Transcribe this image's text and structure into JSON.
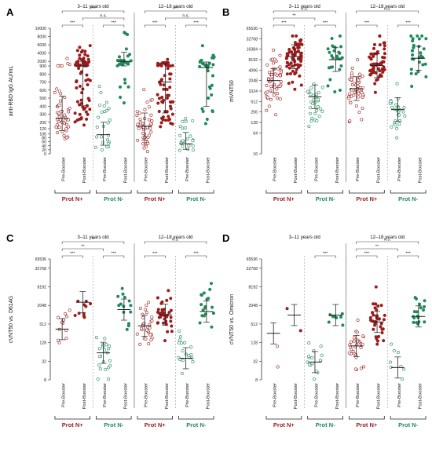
{
  "colors": {
    "pos": "#9b1c1c",
    "neg": "#1f8a5b",
    "axis": "#333333",
    "sep": "#9a9a9a",
    "bracket": "#444444"
  },
  "chart_data": [
    {
      "id": "A",
      "type": "scatter",
      "panel_letter": "A",
      "ylabel": "anti-RBD IgG AU/mL",
      "yscale": "broken-linear",
      "ticks": [
        "0",
        "20",
        "40",
        "60",
        "80",
        "100",
        "120",
        "200",
        "300",
        "400",
        "500",
        "600",
        "700",
        "800",
        "900",
        "2000",
        "4000",
        "6000",
        "8000",
        "10000"
      ],
      "ylim": [
        0,
        10000
      ],
      "groups": [
        {
          "label": "3–11 years old",
          "cols": [
            0,
            3
          ]
        },
        {
          "label": "12–18 years old",
          "cols": [
            4,
            7
          ]
        }
      ],
      "categories": [
        "Pre-Booster",
        "Post-Booster",
        "Pre-Booster",
        "Post-Booster",
        "Pre-Booster",
        "Post-Booster",
        "Pre-Booster",
        "Post-Booster"
      ],
      "bottom_labels": [
        "Prot N+",
        "Prot N-",
        "Prot N+",
        "Prot N-"
      ],
      "series": [
        {
          "group": "Prot N+",
          "age": "3–11",
          "booster": "Pre",
          "median": 250,
          "n": 50
        },
        {
          "group": "Prot N+",
          "age": "3–11",
          "booster": "Post",
          "median": 900,
          "n": 75
        },
        {
          "group": "Prot N-",
          "age": "3–11",
          "booster": "Pre",
          "median": 95,
          "n": 25
        },
        {
          "group": "Prot N-",
          "age": "3–11",
          "booster": "Post",
          "median": 2000,
          "n": 28
        },
        {
          "group": "Prot N+",
          "age": "12–18",
          "booster": "Pre",
          "median": 150,
          "n": 50
        },
        {
          "group": "Prot N+",
          "age": "12–18",
          "booster": "Post",
          "median": 700,
          "n": 60
        },
        {
          "group": "Prot N-",
          "age": "12–18",
          "booster": "Pre",
          "median": 50,
          "n": 22
        },
        {
          "group": "Prot N-",
          "age": "12–18",
          "booster": "Post",
          "median": 880,
          "n": 30
        }
      ],
      "significance": [
        {
          "from": 0,
          "to": 3,
          "label": "***"
        },
        {
          "from": 1,
          "to": 3,
          "label": "n.s."
        },
        {
          "from": 0,
          "to": 1,
          "label": "***"
        },
        {
          "from": 2,
          "to": 3,
          "label": "***"
        },
        {
          "from": 4,
          "to": 7,
          "label": "***"
        },
        {
          "from": 5,
          "to": 7,
          "label": "n.s."
        },
        {
          "from": 4,
          "to": 5,
          "label": "***"
        },
        {
          "from": 6,
          "to": 7,
          "label": "***"
        }
      ]
    },
    {
      "id": "B",
      "type": "scatter",
      "panel_letter": "B",
      "ylabel": "mVNT50",
      "yscale": "log2",
      "ticks": [
        "16",
        "64",
        "128",
        "256",
        "512",
        "1024",
        "2048",
        "4096",
        "8192",
        "16384",
        "32768",
        "65536"
      ],
      "ylim": [
        16,
        65536
      ],
      "groups": [
        {
          "label": "3–11 years old",
          "cols": [
            0,
            3
          ]
        },
        {
          "label": "12–18 years old",
          "cols": [
            4,
            7
          ]
        }
      ],
      "categories": [
        "Pre-Booster",
        "Post-Booster",
        "Pre-Booster",
        "Post-Booster",
        "Pre-Booster",
        "Post-Booster",
        "Pre-Booster",
        "Post-Booster"
      ],
      "bottom_labels": [
        "Prot N+",
        "Prot N-",
        "Prot N+",
        "Prot N-"
      ],
      "series": [
        {
          "group": "Prot N+",
          "age": "3–11",
          "booster": "Pre",
          "median": 2048,
          "n": 55
        },
        {
          "group": "Prot N+",
          "age": "3–11",
          "booster": "Post",
          "median": 10000,
          "n": 70
        },
        {
          "group": "Prot N-",
          "age": "3–11",
          "booster": "Pre",
          "median": 700,
          "n": 30
        },
        {
          "group": "Prot N-",
          "age": "3–11",
          "booster": "Post",
          "median": 8192,
          "n": 25
        },
        {
          "group": "Prot N+",
          "age": "12–18",
          "booster": "Pre",
          "median": 1200,
          "n": 50
        },
        {
          "group": "Prot N+",
          "age": "12–18",
          "booster": "Post",
          "median": 5500,
          "n": 60
        },
        {
          "group": "Prot N-",
          "age": "12–18",
          "booster": "Pre",
          "median": 300,
          "n": 28
        },
        {
          "group": "Prot N-",
          "age": "12–18",
          "booster": "Post",
          "median": 9000,
          "n": 30
        }
      ],
      "significance": [
        {
          "from": 0,
          "to": 3,
          "label": "n.s."
        },
        {
          "from": 0,
          "to": 2,
          "label": "**"
        },
        {
          "from": 0,
          "to": 1,
          "label": "***"
        },
        {
          "from": 2,
          "to": 3,
          "label": "***"
        },
        {
          "from": 4,
          "to": 7,
          "label": "n.s."
        },
        {
          "from": 4,
          "to": 5,
          "label": "***"
        },
        {
          "from": 6,
          "to": 7,
          "label": "***"
        }
      ]
    },
    {
      "id": "C",
      "type": "scatter",
      "panel_letter": "C",
      "ylabel": "cVNT50 vs. D614G",
      "yscale": "log2",
      "ticks": [
        "8",
        "32",
        "128",
        "512",
        "2048",
        "8192",
        "32768",
        "65536"
      ],
      "ylim": [
        8,
        65536
      ],
      "groups": [
        {
          "label": "3–11 years old",
          "cols": [
            0,
            3
          ]
        },
        {
          "label": "12–18 years old",
          "cols": [
            4,
            7
          ]
        }
      ],
      "categories": [
        "Pre-Booster",
        "Post-Booster",
        "Pre-Booster",
        "Post-Booster",
        "Pre-Booster",
        "Post-Booster",
        "Pre-Booster",
        "Post-Booster"
      ],
      "bottom_labels": [
        "Prot N+",
        "Prot N-",
        "Prot N+",
        "Prot N-"
      ],
      "series": [
        {
          "group": "Prot N+",
          "age": "3–11",
          "booster": "Pre",
          "median": 350,
          "n": 12
        },
        {
          "group": "Prot N+",
          "age": "3–11",
          "booster": "Post",
          "median": 2600,
          "n": 10
        },
        {
          "group": "Prot N-",
          "age": "3–11",
          "booster": "Pre",
          "median": 60,
          "n": 22
        },
        {
          "group": "Prot N-",
          "age": "3–11",
          "booster": "Post",
          "median": 1500,
          "n": 14
        },
        {
          "group": "Prot N+",
          "age": "12–18",
          "booster": "Pre",
          "median": 450,
          "n": 30
        },
        {
          "group": "Prot N+",
          "age": "12–18",
          "booster": "Post",
          "median": 1024,
          "n": 35
        },
        {
          "group": "Prot N-",
          "age": "12–18",
          "booster": "Pre",
          "median": 40,
          "n": 18
        },
        {
          "group": "Prot N-",
          "age": "12–18",
          "booster": "Post",
          "median": 1300,
          "n": 18
        }
      ],
      "significance": [
        {
          "from": 0,
          "to": 3,
          "label": "**"
        },
        {
          "from": 0,
          "to": 2,
          "label": "**"
        },
        {
          "from": 0,
          "to": 1,
          "label": "***"
        },
        {
          "from": 2,
          "to": 3,
          "label": "***"
        },
        {
          "from": 4,
          "to": 7,
          "label": "n.s."
        },
        {
          "from": 4,
          "to": 5,
          "label": "***"
        },
        {
          "from": 6,
          "to": 7,
          "label": "***"
        }
      ]
    },
    {
      "id": "D",
      "type": "scatter",
      "panel_letter": "D",
      "ylabel": "cVNT50 vs. Omicron",
      "yscale": "log2",
      "ticks": [
        "8",
        "32",
        "128",
        "512",
        "2048",
        "8192",
        "32768",
        "65536"
      ],
      "ylim": [
        8,
        65536
      ],
      "groups": [
        {
          "label": "3–11 years old",
          "cols": [
            0,
            3
          ]
        },
        {
          "label": "12–18 years old",
          "cols": [
            4,
            7
          ]
        }
      ],
      "categories": [
        "Pre-Booster",
        "Post-Booster",
        "Pre-Booster",
        "Post-Booster",
        "Pre-Booster",
        "Post-Booster",
        "Pre-Booster",
        "Post-Booster"
      ],
      "bottom_labels": [
        "Prot N+",
        "Prot N-",
        "Prot N+",
        "Prot N-"
      ],
      "series": [
        {
          "group": "Prot N+",
          "age": "3–11",
          "booster": "Pre",
          "median": 256,
          "n": 2
        },
        {
          "group": "Prot N+",
          "age": "3–11",
          "booster": "Post",
          "median": 1000,
          "n": 2
        },
        {
          "group": "Prot N-",
          "age": "3–11",
          "booster": "Pre",
          "median": 30,
          "n": 16
        },
        {
          "group": "Prot N-",
          "age": "3–11",
          "booster": "Post",
          "median": 1000,
          "n": 8
        },
        {
          "group": "Prot N+",
          "age": "12–18",
          "booster": "Pre",
          "median": 100,
          "n": 30
        },
        {
          "group": "Prot N+",
          "age": "12–18",
          "booster": "Post",
          "median": 600,
          "n": 35
        },
        {
          "group": "Prot N-",
          "age": "12–18",
          "booster": "Pre",
          "median": 20,
          "n": 8
        },
        {
          "group": "Prot N-",
          "age": "12–18",
          "booster": "Post",
          "median": 900,
          "n": 18
        }
      ],
      "significance": [
        {
          "from": 2,
          "to": 3,
          "label": "***"
        },
        {
          "from": 4,
          "to": 7,
          "label": "n.s."
        },
        {
          "from": 4,
          "to": 6,
          "label": "**"
        },
        {
          "from": 4,
          "to": 5,
          "label": "***"
        },
        {
          "from": 6,
          "to": 7,
          "label": "***"
        }
      ]
    }
  ]
}
